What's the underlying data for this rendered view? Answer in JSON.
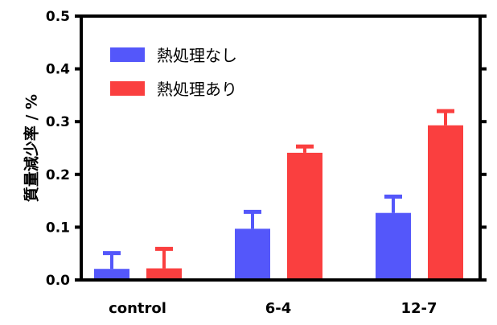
{
  "chart_data": {
    "type": "bar",
    "title": "",
    "xlabel": "",
    "ylabel": "質量減少率 / %",
    "ylim": [
      0,
      0.5
    ],
    "yticks": [
      "0.0",
      "0.1",
      "0.2",
      "0.3",
      "0.4",
      "0.5"
    ],
    "categories": [
      "control",
      "6-4",
      "12-7"
    ],
    "legend_position": "top-left",
    "series": [
      {
        "name": "熱処理なし",
        "color": "#5457FA",
        "values": [
          0.021,
          0.097,
          0.127
        ],
        "error_upper": [
          0.054,
          0.132,
          0.161
        ]
      },
      {
        "name": "熱処理あり",
        "color": "#FA3F3F",
        "values": [
          0.022,
          0.241,
          0.293
        ],
        "error_upper": [
          0.062,
          0.256,
          0.323
        ]
      }
    ]
  }
}
